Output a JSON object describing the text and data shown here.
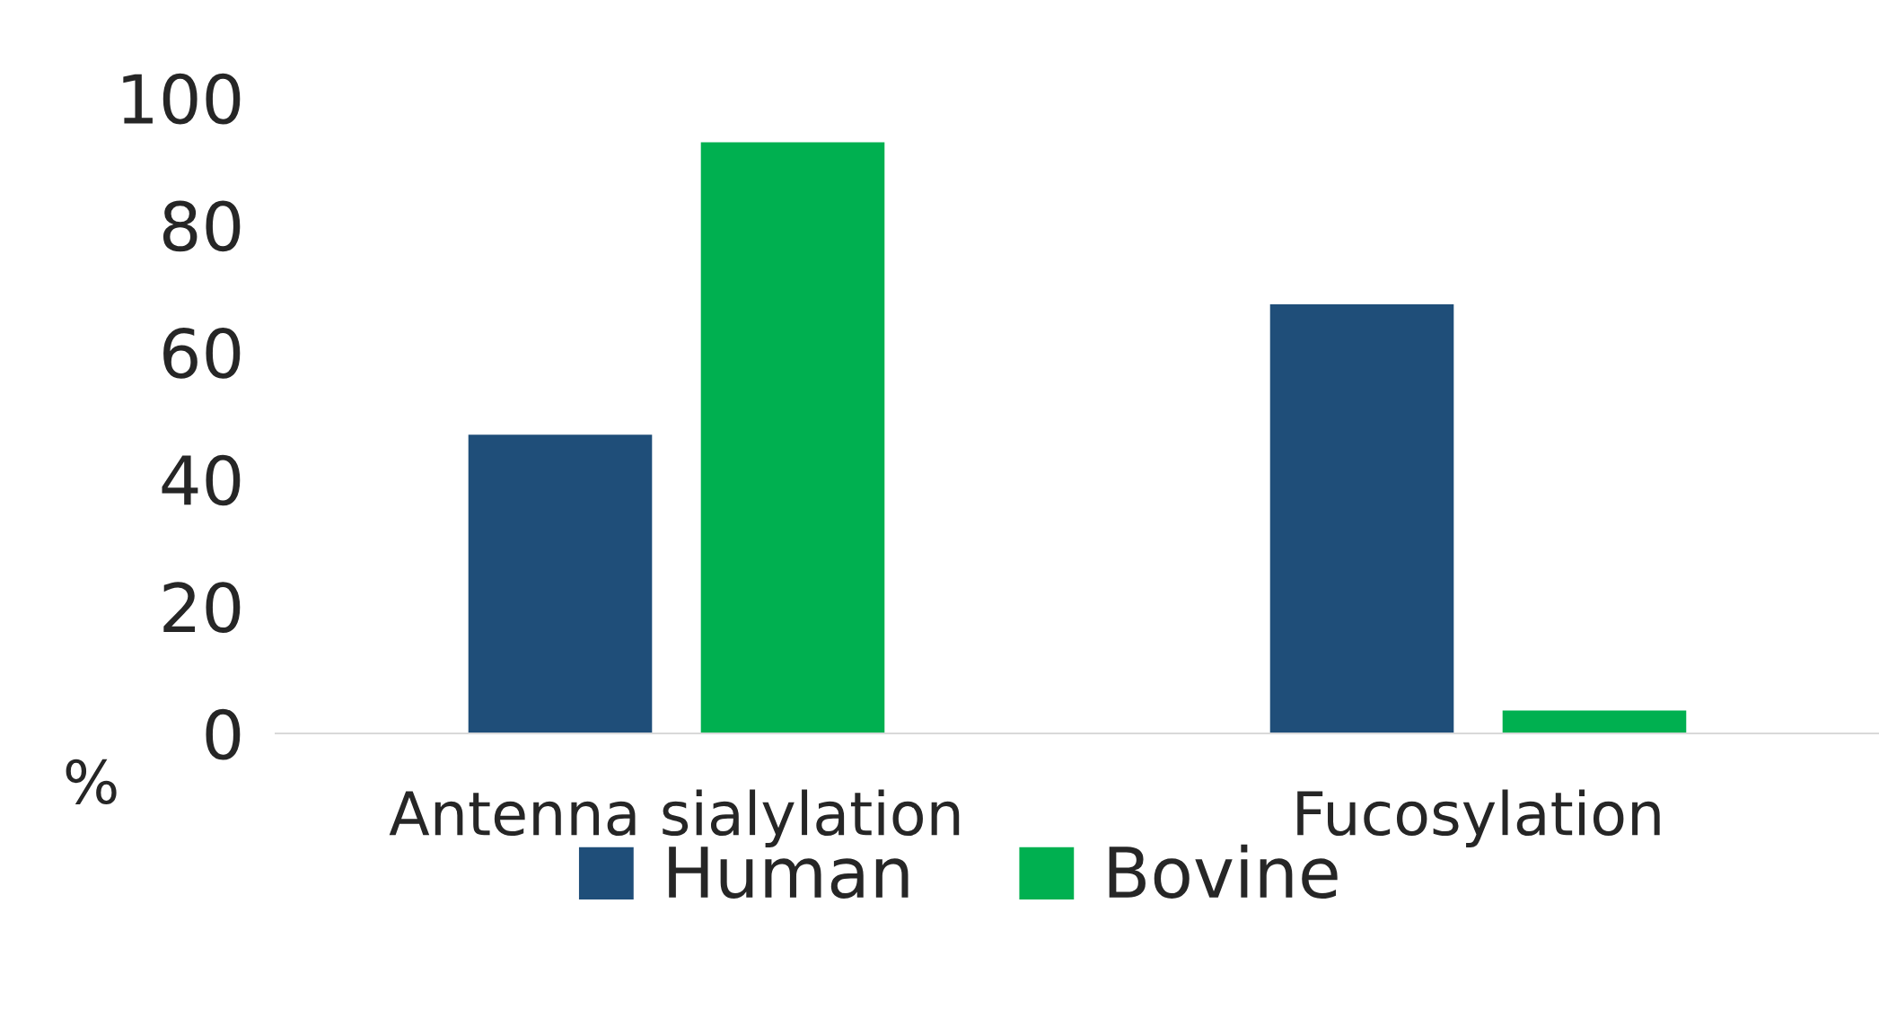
{
  "chart_data": {
    "type": "bar",
    "ylabel": "%",
    "categories": [
      "Antenna sialylation",
      "Fucosylation"
    ],
    "series": [
      {
        "name": "Human",
        "color": "#1f4e79",
        "values": [
          47,
          67.5
        ]
      },
      {
        "name": "Bovine",
        "color": "#00b050",
        "values": [
          93,
          3.6
        ]
      }
    ],
    "ylim": [
      0,
      100
    ],
    "yticks": [
      0,
      20,
      40,
      60,
      80,
      100
    ],
    "grid": false,
    "legend": "bottom"
  }
}
